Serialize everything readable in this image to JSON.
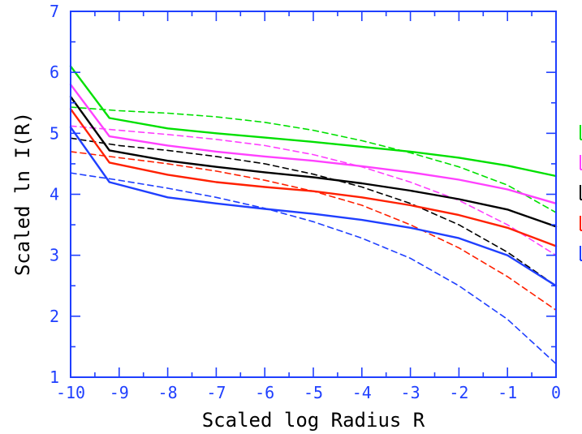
{
  "chart_data": {
    "type": "line",
    "title": "",
    "xlabel": "Scaled log Radius R",
    "ylabel": "Scaled ln I(R)",
    "xlim": [
      -10,
      0
    ],
    "ylim": [
      1,
      7
    ],
    "x_ticks": [
      "-10",
      "-9",
      "-8",
      "-7",
      "-6",
      "-5",
      "-4",
      "-3",
      "-2",
      "-1",
      "0"
    ],
    "y_ticks": [
      "1",
      "2",
      "3",
      "4",
      "5",
      "6",
      "7"
    ],
    "grid": false,
    "legend": "right",
    "colors": {
      "axis": "#1f3fff",
      "green": "#00e000",
      "magenta": "#ff40ff",
      "black": "#000000",
      "red": "#ff2000",
      "blue": "#1f3fff"
    },
    "series": [
      {
        "color": "green",
        "style": "solid",
        "x": [
          -10,
          -9.2,
          -8,
          -7,
          -6,
          -5,
          -4,
          -3,
          -2,
          -1,
          0
        ],
        "y": [
          6.1,
          5.25,
          5.08,
          5.0,
          4.93,
          4.86,
          4.78,
          4.7,
          4.6,
          4.47,
          4.3
        ]
      },
      {
        "color": "green",
        "style": "dashed",
        "x": [
          -10,
          -9,
          -8,
          -7,
          -6,
          -5,
          -4,
          -3,
          -2,
          -1,
          0
        ],
        "y": [
          5.43,
          5.37,
          5.33,
          5.27,
          5.18,
          5.05,
          4.88,
          4.68,
          4.45,
          4.15,
          3.7
        ]
      },
      {
        "color": "magenta",
        "style": "solid",
        "x": [
          -10,
          -9.2,
          -8,
          -7,
          -6,
          -5,
          -4,
          -3,
          -2,
          -1,
          0
        ],
        "y": [
          5.8,
          4.95,
          4.8,
          4.7,
          4.62,
          4.55,
          4.46,
          4.36,
          4.24,
          4.08,
          3.85
        ]
      },
      {
        "color": "magenta",
        "style": "dashed",
        "x": [
          -10,
          -9,
          -8,
          -7,
          -6,
          -5,
          -4,
          -3,
          -2,
          -1,
          0
        ],
        "y": [
          5.12,
          5.05,
          4.98,
          4.9,
          4.8,
          4.65,
          4.45,
          4.2,
          3.9,
          3.5,
          3.0
        ]
      },
      {
        "color": "black",
        "style": "solid",
        "x": [
          -10,
          -9.2,
          -8,
          -7,
          -6,
          -5,
          -4,
          -3,
          -2,
          -1,
          0
        ],
        "y": [
          5.6,
          4.72,
          4.55,
          4.45,
          4.36,
          4.28,
          4.18,
          4.06,
          3.92,
          3.75,
          3.47
        ]
      },
      {
        "color": "black",
        "style": "dashed",
        "x": [
          -10,
          -9,
          -8,
          -7,
          -6,
          -5,
          -4,
          -3,
          -2,
          -1,
          0
        ],
        "y": [
          4.92,
          4.8,
          4.72,
          4.62,
          4.5,
          4.33,
          4.12,
          3.85,
          3.5,
          3.05,
          2.5
        ]
      },
      {
        "color": "red",
        "style": "solid",
        "x": [
          -10,
          -9.2,
          -8,
          -7,
          -6,
          -5,
          -4,
          -3,
          -2,
          -1,
          0
        ],
        "y": [
          5.4,
          4.52,
          4.32,
          4.2,
          4.12,
          4.05,
          3.95,
          3.82,
          3.66,
          3.45,
          3.15
        ]
      },
      {
        "color": "red",
        "style": "dashed",
        "x": [
          -10,
          -9,
          -8,
          -7,
          -6,
          -5,
          -4,
          -3,
          -2,
          -1,
          0
        ],
        "y": [
          4.7,
          4.6,
          4.5,
          4.38,
          4.23,
          4.05,
          3.82,
          3.5,
          3.12,
          2.65,
          2.1
        ]
      },
      {
        "color": "blue",
        "style": "solid",
        "x": [
          -10,
          -9.2,
          -8,
          -7,
          -6,
          -5,
          -4,
          -3,
          -2,
          -1,
          0
        ],
        "y": [
          5.1,
          4.2,
          3.95,
          3.85,
          3.76,
          3.68,
          3.58,
          3.45,
          3.28,
          3.0,
          2.5
        ]
      },
      {
        "color": "blue",
        "style": "dashed",
        "x": [
          -10,
          -9,
          -8,
          -7,
          -6,
          -5,
          -4,
          -3,
          -2,
          -1,
          0
        ],
        "y": [
          4.35,
          4.23,
          4.1,
          3.95,
          3.77,
          3.55,
          3.28,
          2.95,
          2.5,
          1.95,
          1.22
        ]
      }
    ],
    "legend_colors": [
      "green",
      "magenta",
      "black",
      "red",
      "blue"
    ]
  }
}
